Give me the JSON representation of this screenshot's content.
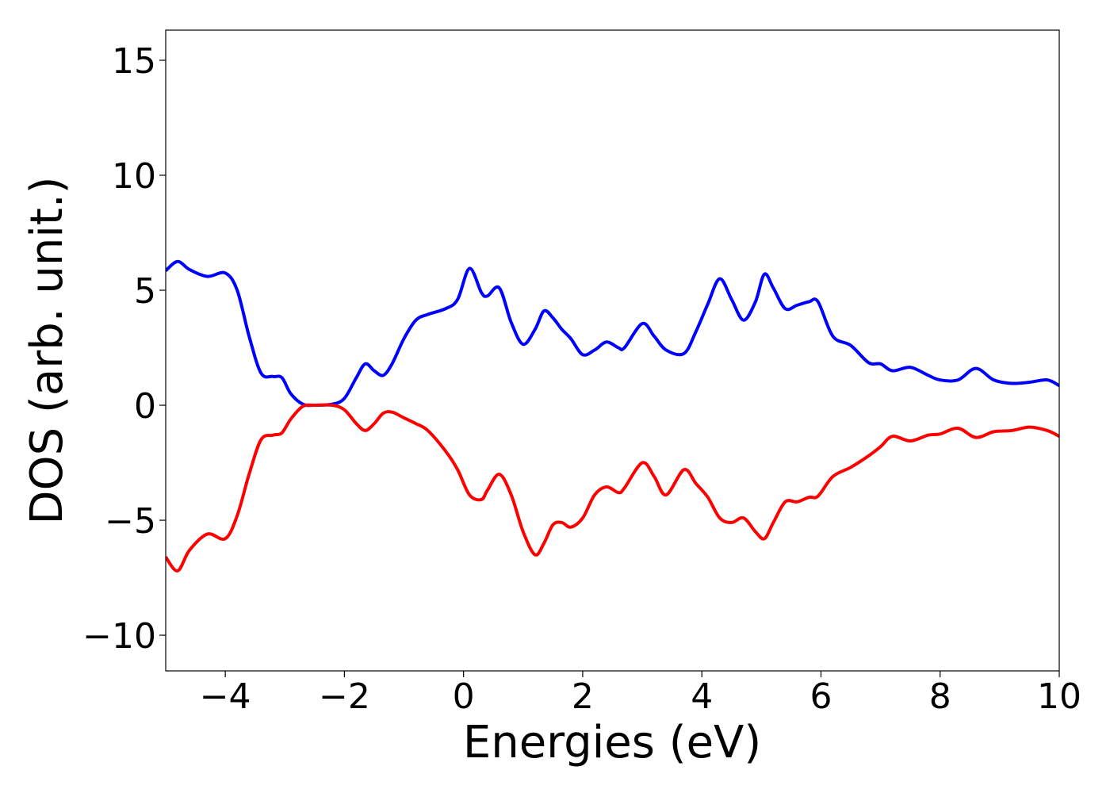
{
  "chart_data": {
    "type": "line",
    "x_label": "Energies (eV)",
    "y_label": "DOS (arb. unit.)",
    "x": [
      -5,
      -4.8,
      -4.6,
      -4.3,
      -4.0,
      -3.8,
      -3.6,
      -3.4,
      -3.2,
      -3.05,
      -2.9,
      -2.7,
      -2.5,
      -2.2,
      -2.0,
      -1.8,
      -1.65,
      -1.5,
      -1.35,
      -1.2,
      -1.0,
      -0.8,
      -0.6,
      -0.3,
      -0.1,
      0.1,
      0.3,
      0.4,
      0.6,
      0.8,
      1.0,
      1.2,
      1.35,
      1.5,
      1.65,
      1.8,
      2.0,
      2.2,
      2.4,
      2.6,
      2.7,
      3.0,
      3.2,
      3.4,
      3.7,
      3.9,
      4.1,
      4.3,
      4.5,
      4.7,
      4.9,
      5.05,
      5.2,
      5.4,
      5.6,
      5.8,
      5.95,
      6.2,
      6.5,
      6.8,
      7.0,
      7.2,
      7.5,
      7.8,
      8.0,
      8.3,
      8.6,
      8.9,
      9.2,
      9.5,
      9.8,
      10
    ],
    "series": [
      {
        "color": "#0000ff",
        "values": [
          5.85,
          6.25,
          5.9,
          5.6,
          5.75,
          5.0,
          3.0,
          1.4,
          1.25,
          1.2,
          0.5,
          0.05,
          0,
          0.05,
          0.3,
          1.2,
          1.8,
          1.5,
          1.3,
          1.8,
          2.9,
          3.7,
          3.95,
          4.2,
          4.6,
          5.95,
          4.9,
          4.75,
          5.1,
          3.6,
          2.65,
          3.3,
          4.1,
          3.8,
          3.3,
          2.9,
          2.2,
          2.4,
          2.75,
          2.5,
          2.5,
          3.55,
          3.0,
          2.4,
          2.25,
          3.2,
          4.4,
          5.5,
          4.6,
          3.7,
          4.5,
          5.7,
          5.1,
          4.2,
          4.35,
          4.5,
          4.5,
          3.0,
          2.6,
          1.85,
          1.8,
          1.5,
          1.65,
          1.3,
          1.1,
          1.1,
          1.6,
          1.1,
          0.95,
          1.0,
          1.1,
          0.85
        ]
      },
      {
        "color": "#ff0000",
        "values": [
          -6.6,
          -7.2,
          -6.3,
          -5.6,
          -5.8,
          -4.8,
          -3.0,
          -1.5,
          -1.3,
          -1.2,
          -0.6,
          -0.05,
          0,
          0,
          -0.2,
          -0.8,
          -1.1,
          -0.8,
          -0.35,
          -0.3,
          -0.55,
          -0.8,
          -1.1,
          -2.0,
          -2.8,
          -3.9,
          -4.1,
          -3.7,
          -3.0,
          -3.9,
          -5.5,
          -6.5,
          -6.0,
          -5.2,
          -5.1,
          -5.3,
          -4.9,
          -3.9,
          -3.55,
          -3.8,
          -3.6,
          -2.5,
          -3.1,
          -3.9,
          -2.8,
          -3.4,
          -4.0,
          -4.9,
          -5.1,
          -4.9,
          -5.5,
          -5.8,
          -5.1,
          -4.2,
          -4.2,
          -4.0,
          -3.95,
          -3.1,
          -2.7,
          -2.2,
          -1.8,
          -1.35,
          -1.55,
          -1.3,
          -1.25,
          -1.0,
          -1.4,
          -1.15,
          -1.1,
          -0.95,
          -1.1,
          -1.35
        ]
      }
    ],
    "xlim": [
      -5,
      10
    ],
    "xticks": [
      {
        "value": -4,
        "label": "−4"
      },
      {
        "value": -2,
        "label": "−2"
      },
      0,
      2,
      4,
      6,
      8,
      10
    ],
    "ylim": [
      -11.55,
      16.31
    ],
    "yticks": [
      {
        "value": -10,
        "label": "−10"
      },
      {
        "value": -5,
        "label": "−5"
      },
      0,
      5,
      10,
      15
    ],
    "grid": false
  }
}
